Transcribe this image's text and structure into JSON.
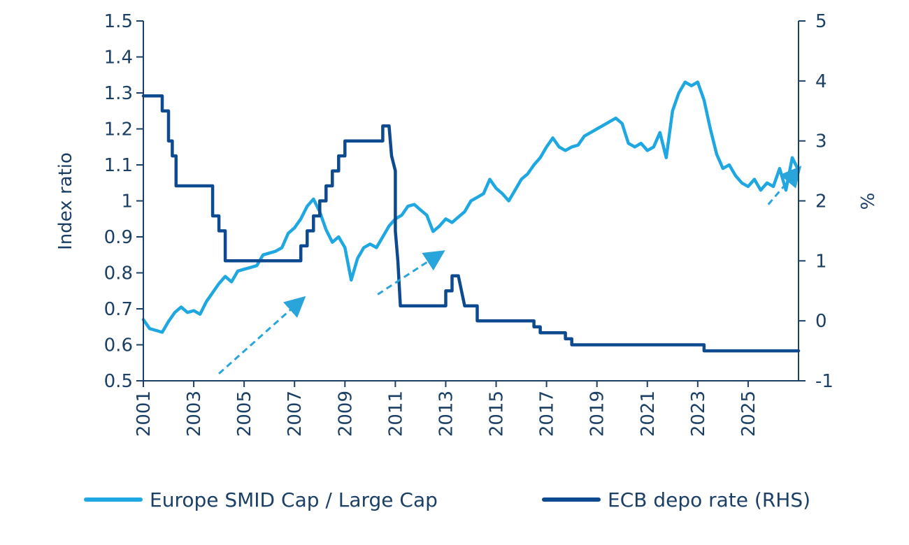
{
  "chart_data": {
    "type": "line",
    "ylabel_left": "Index ratio",
    "ylabel_right": "%",
    "x_ticks": [
      "2001",
      "2003",
      "2005",
      "2007",
      "2009",
      "2011",
      "2013",
      "2015",
      "2017",
      "2019",
      "2021",
      "2023",
      "2025"
    ],
    "y_left_ticks": [
      "0.5",
      "0.6",
      "0.7",
      "0.8",
      "0.9",
      "1",
      "1.1",
      "1.2",
      "1.3",
      "1.4",
      "1.5"
    ],
    "y_right_ticks": [
      "-1",
      "0",
      "1",
      "2",
      "3",
      "4",
      "5"
    ],
    "y_left_range": [
      0.5,
      1.5
    ],
    "y_right_range": [
      -1,
      5
    ],
    "x_range": [
      2001,
      2027
    ],
    "colors": {
      "smid": "#1ea7e1",
      "ecb": "#0d4a8f",
      "axis": "#1c3f66"
    },
    "series": [
      {
        "name": "Europe SMID Cap / Large Cap",
        "axis": "left",
        "points": [
          [
            2001.0,
            0.67
          ],
          [
            2001.25,
            0.645
          ],
          [
            2001.5,
            0.64
          ],
          [
            2001.75,
            0.635
          ],
          [
            2002.0,
            0.665
          ],
          [
            2002.25,
            0.69
          ],
          [
            2002.5,
            0.705
          ],
          [
            2002.75,
            0.69
          ],
          [
            2003.0,
            0.695
          ],
          [
            2003.25,
            0.685
          ],
          [
            2003.5,
            0.72
          ],
          [
            2003.75,
            0.745
          ],
          [
            2004.0,
            0.77
          ],
          [
            2004.25,
            0.79
          ],
          [
            2004.5,
            0.775
          ],
          [
            2004.75,
            0.805
          ],
          [
            2005.0,
            0.81
          ],
          [
            2005.25,
            0.815
          ],
          [
            2005.5,
            0.82
          ],
          [
            2005.75,
            0.85
          ],
          [
            2006.0,
            0.855
          ],
          [
            2006.25,
            0.86
          ],
          [
            2006.5,
            0.87
          ],
          [
            2006.75,
            0.91
          ],
          [
            2007.0,
            0.925
          ],
          [
            2007.25,
            0.95
          ],
          [
            2007.5,
            0.985
          ],
          [
            2007.75,
            1.005
          ],
          [
            2008.0,
            0.97
          ],
          [
            2008.25,
            0.92
          ],
          [
            2008.5,
            0.885
          ],
          [
            2008.75,
            0.9
          ],
          [
            2009.0,
            0.87
          ],
          [
            2009.25,
            0.78
          ],
          [
            2009.5,
            0.84
          ],
          [
            2009.75,
            0.87
          ],
          [
            2010.0,
            0.88
          ],
          [
            2010.25,
            0.87
          ],
          [
            2010.5,
            0.9
          ],
          [
            2010.75,
            0.93
          ],
          [
            2011.0,
            0.95
          ],
          [
            2011.25,
            0.96
          ],
          [
            2011.5,
            0.985
          ],
          [
            2011.75,
            0.99
          ],
          [
            2012.0,
            0.975
          ],
          [
            2012.25,
            0.96
          ],
          [
            2012.5,
            0.915
          ],
          [
            2012.75,
            0.93
          ],
          [
            2013.0,
            0.95
          ],
          [
            2013.25,
            0.94
          ],
          [
            2013.5,
            0.955
          ],
          [
            2013.75,
            0.97
          ],
          [
            2014.0,
            1.0
          ],
          [
            2014.25,
            1.01
          ],
          [
            2014.5,
            1.02
          ],
          [
            2014.75,
            1.06
          ],
          [
            2015.0,
            1.035
          ],
          [
            2015.25,
            1.02
          ],
          [
            2015.5,
            1.0
          ],
          [
            2015.75,
            1.03
          ],
          [
            2016.0,
            1.06
          ],
          [
            2016.25,
            1.075
          ],
          [
            2016.5,
            1.1
          ],
          [
            2016.75,
            1.12
          ],
          [
            2017.0,
            1.15
          ],
          [
            2017.25,
            1.175
          ],
          [
            2017.5,
            1.15
          ],
          [
            2017.75,
            1.14
          ],
          [
            2018.0,
            1.15
          ],
          [
            2018.25,
            1.155
          ],
          [
            2018.5,
            1.18
          ],
          [
            2018.75,
            1.19
          ],
          [
            2019.0,
            1.2
          ],
          [
            2019.25,
            1.21
          ],
          [
            2019.5,
            1.22
          ],
          [
            2019.75,
            1.23
          ],
          [
            2020.0,
            1.215
          ],
          [
            2020.25,
            1.16
          ],
          [
            2020.5,
            1.15
          ],
          [
            2020.75,
            1.16
          ],
          [
            2021.0,
            1.14
          ],
          [
            2021.25,
            1.15
          ],
          [
            2021.5,
            1.19
          ],
          [
            2021.75,
            1.12
          ],
          [
            2022.0,
            1.25
          ],
          [
            2022.25,
            1.3
          ],
          [
            2022.5,
            1.33
          ],
          [
            2022.75,
            1.32
          ],
          [
            2023.0,
            1.33
          ],
          [
            2023.25,
            1.28
          ],
          [
            2023.5,
            1.2
          ],
          [
            2023.75,
            1.13
          ],
          [
            2024.0,
            1.09
          ],
          [
            2024.25,
            1.1
          ],
          [
            2024.5,
            1.07
          ],
          [
            2024.75,
            1.05
          ],
          [
            2025.0,
            1.04
          ],
          [
            2025.25,
            1.06
          ],
          [
            2025.5,
            1.03
          ],
          [
            2025.75,
            1.05
          ],
          [
            2026.0,
            1.04
          ],
          [
            2026.25,
            1.09
          ],
          [
            2026.5,
            1.03
          ],
          [
            2026.75,
            1.12
          ],
          [
            2027.0,
            1.085
          ]
        ]
      },
      {
        "name": "ECB depo rate (RHS)",
        "axis": "right",
        "points": [
          [
            2001.0,
            3.75
          ],
          [
            2001.75,
            3.75
          ],
          [
            2001.75,
            3.5
          ],
          [
            2002.0,
            3.5
          ],
          [
            2002.0,
            3.0
          ],
          [
            2002.15,
            3.0
          ],
          [
            2002.15,
            2.75
          ],
          [
            2002.3,
            2.75
          ],
          [
            2002.3,
            2.25
          ],
          [
            2003.75,
            2.25
          ],
          [
            2003.75,
            1.75
          ],
          [
            2004.0,
            1.75
          ],
          [
            2004.0,
            1.5
          ],
          [
            2004.25,
            1.5
          ],
          [
            2004.25,
            1.0
          ],
          [
            2007.25,
            1.0
          ],
          [
            2007.25,
            1.25
          ],
          [
            2007.5,
            1.25
          ],
          [
            2007.5,
            1.5
          ],
          [
            2007.75,
            1.5
          ],
          [
            2007.75,
            1.75
          ],
          [
            2008.0,
            1.75
          ],
          [
            2008.0,
            2.0
          ],
          [
            2008.25,
            2.0
          ],
          [
            2008.25,
            2.25
          ],
          [
            2008.5,
            2.25
          ],
          [
            2008.5,
            2.5
          ],
          [
            2008.75,
            2.5
          ],
          [
            2008.75,
            2.75
          ],
          [
            2009.0,
            2.75
          ],
          [
            2009.0,
            3.0
          ],
          [
            2010.5,
            3.0
          ],
          [
            2010.5,
            3.25
          ],
          [
            2010.75,
            3.25
          ],
          [
            2010.85,
            2.75
          ],
          [
            2011.0,
            2.5
          ],
          [
            2011.0,
            1.5
          ],
          [
            2011.1,
            1.0
          ],
          [
            2011.2,
            0.25
          ],
          [
            2013.0,
            0.25
          ],
          [
            2013.0,
            0.5
          ],
          [
            2013.25,
            0.5
          ],
          [
            2013.25,
            0.75
          ],
          [
            2013.5,
            0.75
          ],
          [
            2013.75,
            0.25
          ],
          [
            2014.25,
            0.25
          ],
          [
            2014.25,
            0.0
          ],
          [
            2016.5,
            0.0
          ],
          [
            2016.5,
            -0.1
          ],
          [
            2016.75,
            -0.1
          ],
          [
            2016.75,
            -0.2
          ],
          [
            2017.75,
            -0.2
          ],
          [
            2017.75,
            -0.3
          ],
          [
            2018.0,
            -0.3
          ],
          [
            2018.0,
            -0.4
          ],
          [
            2023.25,
            -0.4
          ],
          [
            2023.25,
            -0.5
          ],
          [
            2027.0,
            -0.5
          ]
        ]
      }
    ],
    "annotations": [
      {
        "type": "dashed-arrow",
        "from": [
          2004.0,
          0.52
        ],
        "to": [
          2007.2,
          0.72
        ],
        "axis": "left"
      },
      {
        "type": "dashed-arrow",
        "from": [
          2010.3,
          0.74
        ],
        "to": [
          2012.7,
          0.85
        ],
        "axis": "left"
      },
      {
        "type": "dashed-arrow",
        "from": [
          2025.8,
          0.99
        ],
        "to": [
          2026.9,
          1.08
        ],
        "axis": "left"
      }
    ]
  },
  "legend": {
    "items": [
      {
        "label": "Europe SMID Cap / Large Cap"
      },
      {
        "label": "ECB depo rate (RHS)"
      }
    ]
  }
}
